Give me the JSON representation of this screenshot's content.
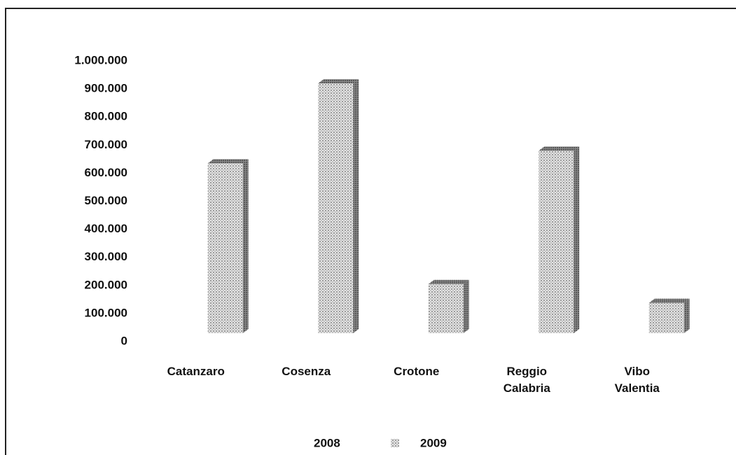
{
  "chart_data": {
    "type": "bar3d",
    "categories": [
      "Catanzaro",
      "Cosenza",
      "Crotone",
      "Reggio Calabria",
      "Vibo Valentia"
    ],
    "series": [
      {
        "name": "2008",
        "color": "#ffffff",
        "values": [
          null,
          null,
          null,
          null,
          null
        ]
      },
      {
        "name": "2009",
        "color": "#a8a8a8",
        "values": [
          605000,
          890000,
          175000,
          650000,
          108000
        ]
      }
    ],
    "ylim": [
      0,
      1000000
    ],
    "yticks": [
      0,
      {
        "value": 100000,
        "label": "100.000"
      },
      {
        "value": 200000,
        "label": "200.000"
      },
      {
        "value": 300000,
        "label": "300.000"
      },
      {
        "value": 400000,
        "label": "400.000"
      },
      {
        "value": 500000,
        "label": "500.000"
      },
      {
        "value": 600000,
        "label": "600.000"
      },
      {
        "value": 700000,
        "label": "700.000"
      },
      {
        "value": 800000,
        "label": "800.000"
      },
      {
        "value": 900000,
        "label": "900.000"
      },
      {
        "value": 1000000,
        "label": "1.000.000"
      }
    ],
    "grid": false,
    "legend": "bottom"
  }
}
